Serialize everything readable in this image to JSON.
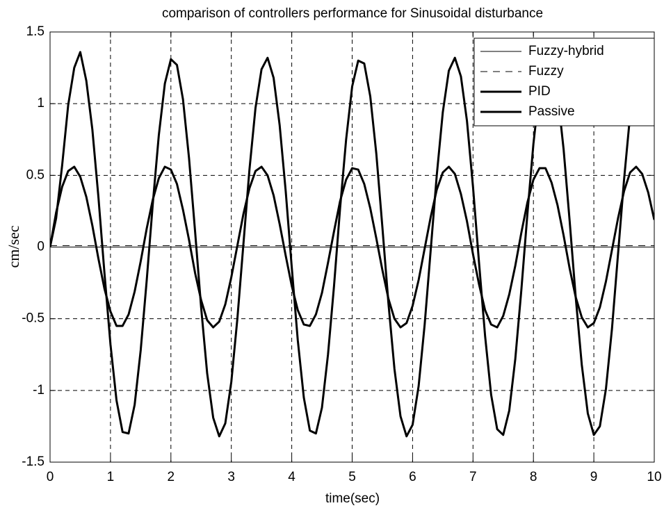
{
  "chart_data": {
    "type": "line",
    "title": "comparison of controllers performance for Sinusoidal disturbance",
    "xlabel": "time(sec)",
    "ylabel": "cm/sec",
    "xlim": [
      0,
      10
    ],
    "ylim": [
      -1.5,
      1.5
    ],
    "xticks": [
      0,
      1,
      2,
      3,
      4,
      5,
      6,
      7,
      8,
      9,
      10
    ],
    "yticks": [
      -1.5,
      -1,
      -0.5,
      0,
      0.5,
      1,
      1.5
    ],
    "grid": true,
    "legend": "upper right",
    "x": [
      0,
      0.1,
      0.2,
      0.3,
      0.4,
      0.5,
      0.6,
      0.7,
      0.8,
      0.9,
      1,
      1.1,
      1.2,
      1.3,
      1.4,
      1.5,
      1.6,
      1.7,
      1.8,
      1.9,
      2,
      2.1,
      2.2,
      2.3,
      2.4,
      2.5,
      2.6,
      2.7,
      2.8,
      2.9,
      3,
      3.1,
      3.2,
      3.3,
      3.4,
      3.5,
      3.6,
      3.7,
      3.8,
      3.9,
      4,
      4.1,
      4.2,
      4.3,
      4.4,
      4.5,
      4.6,
      4.7,
      4.8,
      4.9,
      5,
      5.1,
      5.2,
      5.3,
      5.4,
      5.5,
      5.6,
      5.7,
      5.8,
      5.9,
      6,
      6.1,
      6.2,
      6.3,
      6.4,
      6.5,
      6.6,
      6.7,
      6.8,
      6.9,
      7,
      7.1,
      7.2,
      7.3,
      7.4,
      7.5,
      7.6,
      7.7,
      7.8,
      7.9,
      8,
      8.1,
      8.2,
      8.3,
      8.4,
      8.5,
      8.6,
      8.7,
      8.8,
      8.9,
      9,
      9.1,
      9.2,
      9.3,
      9.4,
      9.5,
      9.6,
      9.7,
      9.8,
      9.9,
      10
    ],
    "series": [
      {
        "name": "Fuzzy-hybrid",
        "color": "#000000",
        "linewidth": 1,
        "linestyle": "solid",
        "x": [
          0,
          10
        ],
        "values": [
          0,
          0
        ]
      },
      {
        "name": "Fuzzy",
        "color": "#000000",
        "linewidth": 1,
        "linestyle": "dashed",
        "x": [
          0,
          10
        ],
        "values": [
          0.01,
          0.01
        ]
      },
      {
        "name": "PID",
        "color": "#000000",
        "linewidth": 3,
        "linestyle": "solid",
        "values": [
          0,
          0.24,
          0.42,
          0.53,
          0.56,
          0.49,
          0.35,
          0.15,
          -0.08,
          -0.29,
          -0.45,
          -0.55,
          -0.55,
          -0.47,
          -0.31,
          -0.1,
          0.13,
          0.33,
          0.48,
          0.56,
          0.54,
          0.44,
          0.26,
          0.05,
          -0.18,
          -0.37,
          -0.51,
          -0.56,
          -0.52,
          -0.4,
          -0.21,
          0.01,
          0.23,
          0.41,
          0.53,
          0.56,
          0.5,
          0.36,
          0.16,
          -0.06,
          -0.27,
          -0.44,
          -0.54,
          -0.55,
          -0.47,
          -0.32,
          -0.11,
          0.11,
          0.32,
          0.47,
          0.55,
          0.54,
          0.44,
          0.27,
          0.06,
          -0.16,
          -0.36,
          -0.5,
          -0.56,
          -0.53,
          -0.41,
          -0.23,
          -0.01,
          0.21,
          0.4,
          0.52,
          0.56,
          0.51,
          0.37,
          0.18,
          -0.05,
          -0.26,
          -0.44,
          -0.54,
          -0.56,
          -0.48,
          -0.33,
          -0.13,
          0.1,
          0.31,
          0.47,
          0.55,
          0.55,
          0.45,
          0.29,
          0.08,
          -0.15,
          -0.35,
          -0.49,
          -0.56,
          -0.53,
          -0.42,
          -0.24,
          -0.02,
          0.2,
          0.39,
          0.52,
          0.56,
          0.51,
          0.38,
          0.19
        ]
      },
      {
        "name": "Passive",
        "color": "#000000",
        "linewidth": 3,
        "linestyle": "solid",
        "values": [
          0,
          0.2,
          0.57,
          0.99,
          1.25,
          1.36,
          1.16,
          0.82,
          0.35,
          -0.18,
          -0.68,
          -1.07,
          -1.29,
          -1.3,
          -1.1,
          -0.72,
          -0.23,
          0.3,
          0.78,
          1.14,
          1.31,
          1.27,
          1.03,
          0.62,
          0.11,
          -0.42,
          -0.88,
          -1.19,
          -1.32,
          -1.23,
          -0.94,
          -0.5,
          0.02,
          0.54,
          0.97,
          1.24,
          1.32,
          1.18,
          0.85,
          0.39,
          -0.14,
          -0.65,
          -1.05,
          -1.28,
          -1.3,
          -1.12,
          -0.75,
          -0.27,
          0.27,
          0.75,
          1.12,
          1.3,
          1.28,
          1.05,
          0.65,
          0.14,
          -0.39,
          -0.85,
          -1.18,
          -1.32,
          -1.24,
          -0.97,
          -0.54,
          -0.02,
          0.5,
          0.94,
          1.23,
          1.32,
          1.19,
          0.88,
          0.42,
          -0.11,
          -0.62,
          -1.03,
          -1.27,
          -1.31,
          -1.14,
          -0.78,
          -0.3,
          0.23,
          0.72,
          1.1,
          1.3,
          1.29,
          1.07,
          0.68,
          0.18,
          -0.35,
          -0.82,
          -1.16,
          -1.31,
          -1.25,
          -0.99,
          -0.57,
          -0.05,
          0.47,
          0.92,
          1.22,
          1.32,
          1.21,
          0.9
        ]
      }
    ]
  }
}
